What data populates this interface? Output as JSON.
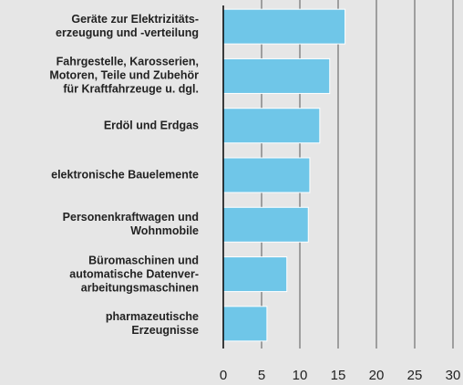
{
  "chart_data": {
    "type": "bar",
    "orientation": "horizontal",
    "categories": [
      "Geräte zur Elektrizitäts-\nerzeugung und -verteilung",
      "Fahrgestelle, Karosserien,\nMotoren, Teile und Zubehör\nfür Kraftfahrzeuge u. dgl.",
      "Erdöl und Erdgas",
      "elektronische Bauelemente",
      "Personenkraftwagen und\nWohnmobile",
      "Büromaschinen und\nautomatische Datenver-\narbeitungsmaschinen",
      "pharmazeutische\nErzeugnisse"
    ],
    "values": [
      15.9,
      13.9,
      12.6,
      11.3,
      11.1,
      8.3,
      5.7
    ],
    "color": "#6fc6e8",
    "xlim": [
      0,
      30
    ],
    "xticks": [
      0,
      5,
      10,
      15,
      20,
      25,
      30
    ],
    "grid": true
  }
}
